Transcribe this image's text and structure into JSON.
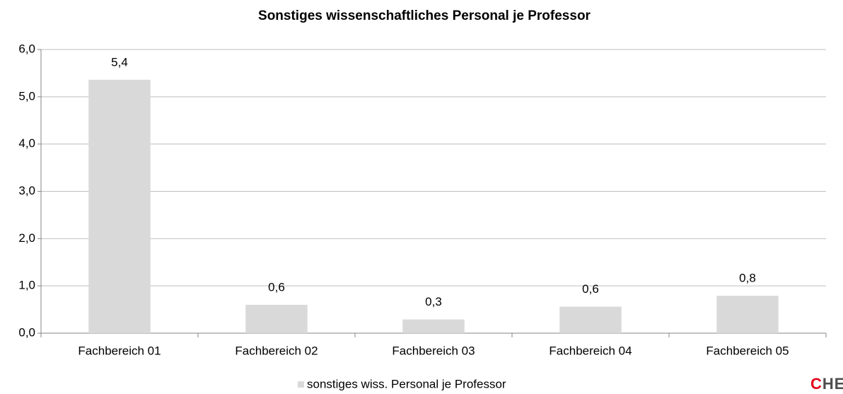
{
  "chart_data": {
    "type": "bar",
    "title": "Sonstiges wissenschaftliches Personal je Professor",
    "categories": [
      "Fachbereich 01",
      "Fachbereich 02",
      "Fachbereich 03",
      "Fachbereich 04",
      "Fachbereich 05"
    ],
    "series": [
      {
        "name": "sonstiges wiss. Personal je Professor",
        "color": "#d9d9d9",
        "values": [
          5.36,
          0.6,
          0.29,
          0.56,
          0.79
        ],
        "value_labels": [
          "5,4",
          "0,6",
          "0,3",
          "0,6",
          "0,8"
        ]
      }
    ],
    "ylim": [
      0,
      6
    ],
    "yticks": [
      {
        "value": 0,
        "label": "0,0"
      },
      {
        "value": 1,
        "label": "1,0"
      },
      {
        "value": 2,
        "label": "2,0"
      },
      {
        "value": 3,
        "label": "3,0"
      },
      {
        "value": 4,
        "label": "4,0"
      },
      {
        "value": 5,
        "label": "5,0"
      },
      {
        "value": 6,
        "label": "6,0"
      }
    ],
    "grid": true,
    "legend": "bottom"
  },
  "logo": "CHE"
}
